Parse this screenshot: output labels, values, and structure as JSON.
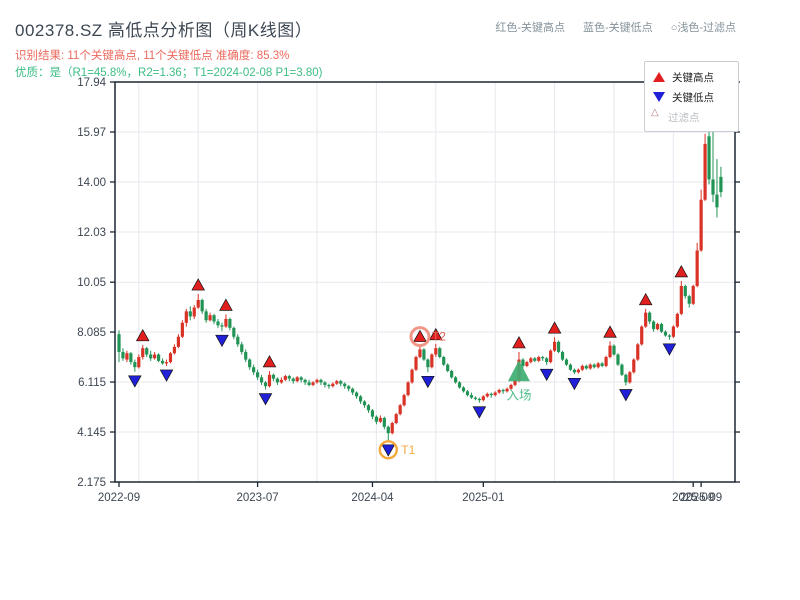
{
  "header": {
    "title": "002378.SZ 高低点分析图（周K线图）",
    "subtitle_result": "识别结果: 11个关键高点, 11个关键低点  准确度: 85.3%",
    "subtitle_quality": "优质：是（R1=45.8%，R2=1.36；T1=2024-02-08 P1=3.80)",
    "legend_note_high": "红色-关键高点",
    "legend_note_low": "蓝色-关键低点",
    "legend_note_filter": "○浅色-过滤点"
  },
  "legend": {
    "items": [
      {
        "label": "关键高点",
        "marker": "up-triangle",
        "color": "#e21f1f"
      },
      {
        "label": "关键低点",
        "marker": "down-triangle",
        "color": "#2020d8"
      },
      {
        "label": "过滤点",
        "marker": "hollow-triangle",
        "color": "#b87d7d"
      }
    ]
  },
  "chart_data": {
    "type": "candlestick",
    "title": "002378.SZ weekly K-line with key high/low points",
    "y_ticks": [
      "17.94",
      "15.97",
      "14.00",
      "12.03",
      "10.05",
      "8.085",
      "6.115",
      "4.145",
      "2.175"
    ],
    "y_tick_values": [
      17.94,
      15.97,
      14.0,
      12.03,
      10.05,
      8.085,
      6.115,
      4.145,
      2.175
    ],
    "ylim": [
      2.175,
      17.94
    ],
    "x_ticks": [
      {
        "label": "2022-09",
        "week": 0
      },
      {
        "label": "2023-07",
        "week": 35
      },
      {
        "label": "2024-04",
        "week": 64
      },
      {
        "label": "2025-01",
        "week": 92
      },
      {
        "label": "2025-09",
        "week": 145
      },
      {
        "label": "2025-09",
        "week": 147
      }
    ],
    "v_grid_weeks": [
      5,
      20,
      35,
      50,
      65,
      80,
      95,
      110,
      125,
      140
    ],
    "grid": true,
    "up_color": "#d93226",
    "down_color": "#219455",
    "key_high_color": "#e21f1f",
    "key_low_color": "#2020d8",
    "entry_color": "#3fae73",
    "t1_circle_color": "#f2a93b",
    "t2_circle_color": "#ee8c7d",
    "ohlc": [
      [
        8.0,
        8.15,
        6.9,
        7.3
      ],
      [
        7.3,
        7.45,
        6.95,
        7.05
      ],
      [
        7.0,
        7.35,
        6.9,
        7.25
      ],
      [
        7.25,
        7.3,
        6.8,
        6.9
      ],
      [
        6.9,
        7.0,
        6.52,
        6.7
      ],
      [
        6.7,
        7.2,
        6.65,
        7.1
      ],
      [
        7.1,
        7.58,
        7.0,
        7.45
      ],
      [
        7.45,
        7.5,
        7.1,
        7.2
      ],
      [
        7.2,
        7.35,
        6.95,
        7.05
      ],
      [
        7.05,
        7.3,
        7.0,
        7.2
      ],
      [
        7.2,
        7.25,
        6.9,
        6.95
      ],
      [
        6.95,
        7.05,
        6.8,
        6.85
      ],
      [
        6.85,
        7.0,
        6.75,
        6.9
      ],
      [
        6.9,
        7.3,
        6.85,
        7.25
      ],
      [
        7.25,
        7.6,
        7.2,
        7.5
      ],
      [
        7.5,
        8.0,
        7.45,
        7.9
      ],
      [
        7.9,
        8.55,
        7.85,
        8.45
      ],
      [
        8.45,
        9.0,
        8.3,
        8.9
      ],
      [
        8.9,
        9.1,
        8.55,
        8.7
      ],
      [
        8.7,
        9.15,
        8.6,
        9.05
      ],
      [
        9.05,
        9.58,
        9.0,
        9.35
      ],
      [
        9.35,
        9.4,
        8.8,
        8.9
      ],
      [
        8.9,
        9.0,
        8.45,
        8.55
      ],
      [
        8.55,
        8.85,
        8.5,
        8.75
      ],
      [
        8.75,
        8.8,
        8.4,
        8.5
      ],
      [
        8.5,
        8.6,
        8.25,
        8.35
      ],
      [
        8.35,
        8.45,
        8.12,
        8.3
      ],
      [
        8.3,
        8.78,
        8.25,
        8.6
      ],
      [
        8.6,
        8.65,
        8.15,
        8.25
      ],
      [
        8.25,
        8.3,
        7.8,
        7.9
      ],
      [
        7.9,
        8.0,
        7.5,
        7.6
      ],
      [
        7.6,
        7.7,
        7.2,
        7.3
      ],
      [
        7.3,
        7.4,
        6.9,
        7.0
      ],
      [
        7.0,
        7.05,
        6.6,
        6.7
      ],
      [
        6.7,
        6.8,
        6.4,
        6.5
      ],
      [
        6.5,
        6.6,
        6.2,
        6.3
      ],
      [
        6.3,
        6.4,
        6.0,
        6.1
      ],
      [
        6.1,
        6.15,
        5.82,
        5.95
      ],
      [
        5.95,
        6.55,
        5.9,
        6.4
      ],
      [
        6.4,
        6.45,
        6.15,
        6.25
      ],
      [
        6.25,
        6.3,
        6.0,
        6.1
      ],
      [
        6.1,
        6.3,
        6.05,
        6.2
      ],
      [
        6.2,
        6.4,
        6.15,
        6.35
      ],
      [
        6.35,
        6.4,
        6.15,
        6.25
      ],
      [
        6.25,
        6.3,
        6.05,
        6.15
      ],
      [
        6.15,
        6.35,
        6.1,
        6.3
      ],
      [
        6.3,
        6.35,
        6.1,
        6.2
      ],
      [
        6.2,
        6.25,
        6.0,
        6.1
      ],
      [
        6.1,
        6.2,
        5.95,
        6.0
      ],
      [
        6.0,
        6.15,
        5.95,
        6.1
      ],
      [
        6.1,
        6.25,
        6.05,
        6.2
      ],
      [
        6.2,
        6.25,
        6.0,
        6.1
      ],
      [
        6.1,
        6.15,
        5.9,
        6.0
      ],
      [
        6.0,
        6.05,
        5.85,
        5.95
      ],
      [
        5.95,
        6.1,
        5.9,
        6.05
      ],
      [
        6.05,
        6.2,
        6.0,
        6.15
      ],
      [
        6.15,
        6.2,
        5.95,
        6.05
      ],
      [
        6.05,
        6.1,
        5.85,
        5.95
      ],
      [
        5.95,
        6.0,
        5.75,
        5.85
      ],
      [
        5.85,
        5.9,
        5.6,
        5.7
      ],
      [
        5.7,
        5.75,
        5.45,
        5.55
      ],
      [
        5.55,
        5.6,
        5.25,
        5.35
      ],
      [
        5.35,
        5.4,
        5.1,
        5.2
      ],
      [
        5.2,
        5.25,
        4.9,
        5.0
      ],
      [
        5.0,
        5.05,
        4.65,
        4.75
      ],
      [
        4.75,
        4.8,
        4.45,
        4.55
      ],
      [
        4.55,
        4.8,
        4.5,
        4.7
      ],
      [
        4.7,
        4.75,
        4.25,
        4.35
      ],
      [
        4.35,
        4.4,
        3.8,
        4.1
      ],
      [
        4.1,
        4.55,
        4.05,
        4.5
      ],
      [
        4.5,
        4.9,
        4.45,
        4.85
      ],
      [
        4.85,
        5.25,
        4.8,
        5.2
      ],
      [
        5.2,
        5.65,
        5.15,
        5.6
      ],
      [
        5.6,
        6.15,
        5.55,
        6.1
      ],
      [
        6.1,
        6.65,
        6.05,
        6.6
      ],
      [
        6.6,
        7.15,
        6.55,
        7.1
      ],
      [
        7.1,
        7.55,
        7.05,
        7.4
      ],
      [
        7.4,
        7.45,
        6.95,
        7.0
      ],
      [
        7.0,
        7.05,
        6.5,
        6.7
      ],
      [
        6.7,
        7.25,
        6.65,
        7.2
      ],
      [
        7.2,
        7.62,
        7.1,
        7.45
      ],
      [
        7.45,
        7.5,
        7.05,
        7.1
      ],
      [
        7.1,
        7.15,
        6.75,
        6.8
      ],
      [
        6.8,
        6.85,
        6.5,
        6.55
      ],
      [
        6.55,
        6.6,
        6.25,
        6.3
      ],
      [
        6.3,
        6.35,
        6.05,
        6.1
      ],
      [
        6.1,
        6.15,
        5.85,
        5.9
      ],
      [
        5.9,
        5.95,
        5.7,
        5.75
      ],
      [
        5.75,
        5.8,
        5.55,
        5.6
      ],
      [
        5.6,
        5.7,
        5.45,
        5.5
      ],
      [
        5.5,
        5.55,
        5.4,
        5.45
      ],
      [
        5.45,
        5.5,
        5.3,
        5.4
      ],
      [
        5.4,
        5.6,
        5.35,
        5.55
      ],
      [
        5.55,
        5.7,
        5.5,
        5.65
      ],
      [
        5.65,
        5.7,
        5.5,
        5.6
      ],
      [
        5.6,
        5.75,
        5.55,
        5.7
      ],
      [
        5.7,
        5.85,
        5.65,
        5.8
      ],
      [
        5.8,
        5.85,
        5.65,
        5.75
      ],
      [
        5.75,
        5.9,
        5.7,
        5.85
      ],
      [
        5.85,
        6.05,
        5.8,
        6.0
      ],
      [
        6.0,
        6.25,
        5.95,
        6.2
      ],
      [
        6.2,
        7.3,
        6.1,
        7.0
      ],
      [
        7.0,
        7.05,
        6.65,
        6.75
      ],
      [
        6.75,
        6.95,
        6.7,
        6.9
      ],
      [
        6.9,
        7.1,
        6.85,
        7.05
      ],
      [
        7.05,
        7.1,
        6.9,
        6.95
      ],
      [
        6.95,
        7.15,
        6.9,
        7.1
      ],
      [
        7.1,
        7.15,
        6.95,
        7.05
      ],
      [
        7.05,
        7.1,
        6.78,
        6.9
      ],
      [
        6.9,
        7.4,
        6.85,
        7.35
      ],
      [
        7.35,
        7.88,
        7.3,
        7.7
      ],
      [
        7.7,
        7.75,
        7.25,
        7.3
      ],
      [
        7.3,
        7.35,
        6.95,
        7.0
      ],
      [
        7.0,
        7.05,
        6.75,
        6.8
      ],
      [
        6.8,
        6.85,
        6.55,
        6.6
      ],
      [
        6.6,
        6.65,
        6.42,
        6.5
      ],
      [
        6.5,
        6.65,
        6.45,
        6.6
      ],
      [
        6.6,
        6.8,
        6.55,
        6.75
      ],
      [
        6.75,
        6.8,
        6.6,
        6.65
      ],
      [
        6.65,
        6.85,
        6.6,
        6.8
      ],
      [
        6.8,
        6.85,
        6.65,
        6.7
      ],
      [
        6.7,
        6.9,
        6.65,
        6.85
      ],
      [
        6.85,
        6.9,
        6.7,
        6.75
      ],
      [
        6.75,
        7.15,
        6.7,
        7.1
      ],
      [
        7.1,
        7.72,
        7.05,
        7.55
      ],
      [
        7.55,
        7.6,
        7.15,
        7.2
      ],
      [
        7.2,
        7.25,
        6.75,
        6.8
      ],
      [
        6.8,
        6.85,
        6.35,
        6.4
      ],
      [
        6.4,
        6.45,
        5.98,
        6.1
      ],
      [
        6.1,
        6.55,
        6.05,
        6.5
      ],
      [
        6.5,
        7.05,
        6.45,
        7.0
      ],
      [
        7.0,
        7.65,
        6.95,
        7.6
      ],
      [
        7.6,
        8.35,
        7.55,
        8.3
      ],
      [
        8.3,
        9.0,
        8.25,
        8.85
      ],
      [
        8.85,
        8.9,
        8.4,
        8.5
      ],
      [
        8.5,
        8.55,
        8.1,
        8.2
      ],
      [
        8.2,
        8.45,
        8.15,
        8.4
      ],
      [
        8.4,
        8.45,
        8.05,
        8.1
      ],
      [
        8.1,
        8.15,
        7.9,
        7.95
      ],
      [
        7.95,
        8.0,
        7.78,
        7.9
      ],
      [
        7.9,
        8.35,
        7.85,
        8.3
      ],
      [
        8.3,
        8.85,
        8.25,
        8.8
      ],
      [
        8.8,
        10.1,
        8.75,
        9.9
      ],
      [
        9.9,
        9.95,
        9.4,
        9.5
      ],
      [
        9.5,
        9.55,
        9.05,
        9.2
      ],
      [
        9.2,
        9.95,
        9.15,
        9.9
      ],
      [
        9.9,
        11.6,
        9.85,
        11.3
      ],
      [
        11.3,
        13.7,
        11.25,
        13.3
      ],
      [
        13.3,
        15.9,
        13.25,
        15.5
      ],
      [
        15.8,
        16.4,
        13.9,
        14.1
      ],
      [
        14.1,
        16.3,
        13.2,
        13.5
      ],
      [
        13.5,
        14.9,
        12.6,
        13.0
      ],
      [
        14.2,
        14.6,
        13.4,
        13.6
      ]
    ],
    "key_highs": [
      [
        6,
        7.58
      ],
      [
        20,
        9.58
      ],
      [
        27,
        8.78
      ],
      [
        38,
        6.55
      ],
      [
        76,
        7.55
      ],
      [
        80,
        7.62
      ],
      [
        101,
        7.3
      ],
      [
        110,
        7.88
      ],
      [
        124,
        7.72
      ],
      [
        133,
        9.0
      ],
      [
        142,
        10.1
      ]
    ],
    "key_lows": [
      [
        4,
        6.52
      ],
      [
        12,
        6.75
      ],
      [
        26,
        8.12
      ],
      [
        37,
        5.82
      ],
      [
        68,
        3.8
      ],
      [
        78,
        6.5
      ],
      [
        91,
        5.3
      ],
      [
        108,
        6.78
      ],
      [
        115,
        6.42
      ],
      [
        128,
        5.98
      ],
      [
        139,
        7.78
      ]
    ],
    "annotations": [
      {
        "week": 68,
        "price": 3.8,
        "label": "T1",
        "kind": "circled-low"
      },
      {
        "week": 76,
        "price": 7.55,
        "label": "T2",
        "kind": "circled-high"
      },
      {
        "week": 101,
        "price": 6.5,
        "label": "入场",
        "kind": "entry"
      }
    ]
  }
}
